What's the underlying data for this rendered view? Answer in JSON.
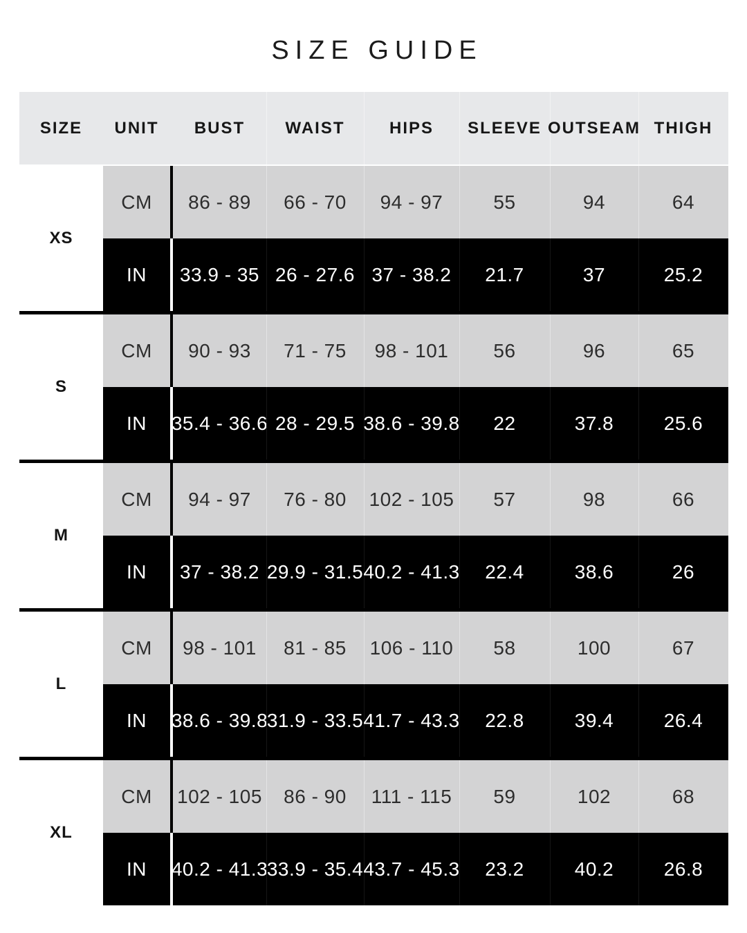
{
  "title": "SIZE GUIDE",
  "colors": {
    "page_background": "#ffffff",
    "header_background": "#e7e8ea",
    "cm_row_background": "#d3d3d4",
    "in_row_background": "#000000",
    "text_dark": "#1c1c1c",
    "text_light": "#ffffff"
  },
  "table": {
    "headers": {
      "size": "SIZE",
      "unit": "UNIT",
      "bust": "BUST",
      "waist": "WAIST",
      "hips": "HIPS",
      "sleeve": "SLEEVE",
      "outseam": "OUTSEAM",
      "thigh": "THIGH"
    },
    "groups": [
      {
        "size": "XS",
        "cm": {
          "unit": "CM",
          "bust": "86 - 89",
          "waist": "66 - 70",
          "hips": "94 - 97",
          "sleeve": "55",
          "outseam": "94",
          "thigh": "64"
        },
        "in": {
          "unit": "IN",
          "bust": "33.9 - 35",
          "waist": "26 - 27.6",
          "hips": "37 - 38.2",
          "sleeve": "21.7",
          "outseam": "37",
          "thigh": "25.2"
        }
      },
      {
        "size": "S",
        "cm": {
          "unit": "CM",
          "bust": "90 - 93",
          "waist": "71 - 75",
          "hips": "98 - 101",
          "sleeve": "56",
          "outseam": "96",
          "thigh": "65"
        },
        "in": {
          "unit": "IN",
          "bust": "35.4 - 36.6",
          "waist": "28 - 29.5",
          "hips": "38.6 - 39.8",
          "sleeve": "22",
          "outseam": "37.8",
          "thigh": "25.6"
        }
      },
      {
        "size": "M",
        "cm": {
          "unit": "CM",
          "bust": "94 - 97",
          "waist": "76 - 80",
          "hips": "102 - 105",
          "sleeve": "57",
          "outseam": "98",
          "thigh": "66"
        },
        "in": {
          "unit": "IN",
          "bust": "37 - 38.2",
          "waist": "29.9 - 31.5",
          "hips": "40.2 - 41.3",
          "sleeve": "22.4",
          "outseam": "38.6",
          "thigh": "26"
        }
      },
      {
        "size": "L",
        "cm": {
          "unit": "CM",
          "bust": "98 - 101",
          "waist": "81 - 85",
          "hips": "106 - 110",
          "sleeve": "58",
          "outseam": "100",
          "thigh": "67"
        },
        "in": {
          "unit": "IN",
          "bust": "38.6 - 39.8",
          "waist": "31.9 - 33.5",
          "hips": "41.7 - 43.3",
          "sleeve": "22.8",
          "outseam": "39.4",
          "thigh": "26.4"
        }
      },
      {
        "size": "XL",
        "cm": {
          "unit": "CM",
          "bust": "102 - 105",
          "waist": "86 - 90",
          "hips": "111 - 115",
          "sleeve": "59",
          "outseam": "102",
          "thigh": "68"
        },
        "in": {
          "unit": "IN",
          "bust": "40.2 - 41.3",
          "waist": "33.9 - 35.4",
          "hips": "43.7 - 45.3",
          "sleeve": "23.2",
          "outseam": "40.2",
          "thigh": "26.8"
        }
      }
    ]
  }
}
